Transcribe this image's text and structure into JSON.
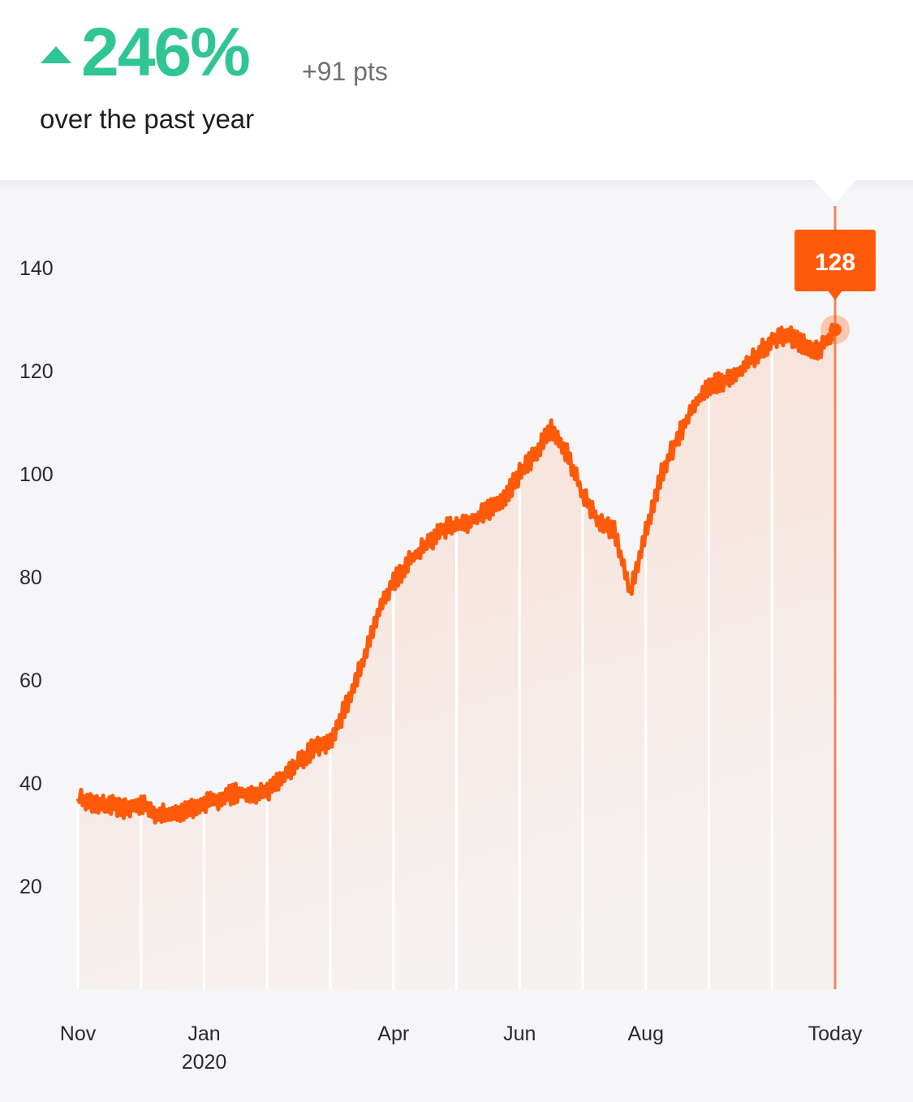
{
  "summary": {
    "change_percent": "246%",
    "change_points": "+91 pts",
    "period": "over the past year",
    "trend": "up",
    "trend_color": "#2fc594"
  },
  "chart_data": {
    "type": "area",
    "title": "",
    "xlabel": "",
    "ylabel": "",
    "line_color": "#ff5a0a",
    "ylim": [
      0,
      140
    ],
    "y_ticks": [
      20,
      40,
      60,
      80,
      100,
      120,
      140
    ],
    "x_tick_labels": [
      {
        "label": "Nov",
        "sub": "",
        "x": 0
      },
      {
        "label": "Jan",
        "sub": "2020",
        "x": 2
      },
      {
        "label": "Apr",
        "sub": "",
        "x": 5
      },
      {
        "label": "Jun",
        "sub": "",
        "x": 7
      },
      {
        "label": "Aug",
        "sub": "",
        "x": 9
      },
      {
        "label": "Today",
        "sub": "",
        "x": 12
      }
    ],
    "tooltip": {
      "label": "128",
      "value": 128
    },
    "series": [
      {
        "x": [
          0,
          0.25,
          0.5,
          0.75,
          1,
          1.25,
          1.5,
          1.75,
          2,
          2.25,
          2.5,
          2.75,
          3,
          3.25,
          3.5,
          3.75,
          4,
          4.25,
          4.5,
          4.75,
          5,
          5.25,
          5.5,
          5.75,
          6,
          6.25,
          6.5,
          6.75,
          7,
          7.25,
          7.5,
          7.75,
          8,
          8.25,
          8.5,
          8.75,
          9,
          9.25,
          9.5,
          9.75,
          10,
          10.25,
          10.5,
          10.75,
          11,
          11.25,
          11.5,
          11.75,
          12
        ],
        "values": [
          37,
          36,
          36,
          35,
          36,
          34,
          34,
          35,
          36,
          37,
          38,
          38,
          38,
          41,
          44,
          47,
          48,
          55,
          63,
          73,
          79,
          83,
          86,
          89,
          90,
          91,
          93,
          95,
          100,
          104,
          109,
          104,
          96,
          91,
          89,
          77,
          89,
          100,
          107,
          113,
          117,
          118,
          120,
          123,
          126,
          127,
          125,
          124,
          128
        ]
      }
    ]
  }
}
